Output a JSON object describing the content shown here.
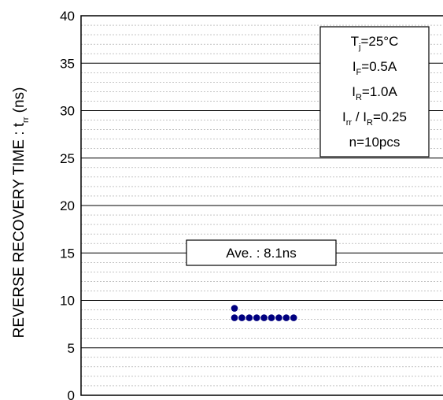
{
  "chart_data": {
    "type": "scatter",
    "ylabel_prefix": "REVERSE RECOVERY TIME : t",
    "ylabel_sub": "rr",
    "ylabel_suffix": " (ns)",
    "ylim": [
      0,
      40
    ],
    "yticks": [
      "0",
      "5",
      "10",
      "15",
      "20",
      "25",
      "30",
      "35",
      "40"
    ],
    "major_step": 5,
    "minor_step": 1,
    "grid": true,
    "points": [
      {
        "x": 1,
        "y": 9
      },
      {
        "x": 1,
        "y": 8
      },
      {
        "x": 2,
        "y": 8
      },
      {
        "x": 3,
        "y": 8
      },
      {
        "x": 4,
        "y": 8
      },
      {
        "x": 5,
        "y": 8
      },
      {
        "x": 6,
        "y": 8
      },
      {
        "x": 7,
        "y": 8
      },
      {
        "x": 8,
        "y": 8
      },
      {
        "x": 9,
        "y": 8
      }
    ],
    "point_color": "#000080",
    "average_label": "Ave. : 8.1ns",
    "conditions": [
      {
        "main": "T",
        "sub": "j",
        "rest": "=25°C"
      },
      {
        "main": "I",
        "sub": "F",
        "rest": "=0.5A"
      },
      {
        "main": "I",
        "sub": "R",
        "rest": "=1.0A"
      },
      {
        "main": "I",
        "sub": "rr",
        "rest": " / I",
        "sub2": "R",
        "rest2": "=0.25"
      },
      {
        "main": "n=10pcs",
        "sub": "",
        "rest": ""
      }
    ]
  }
}
